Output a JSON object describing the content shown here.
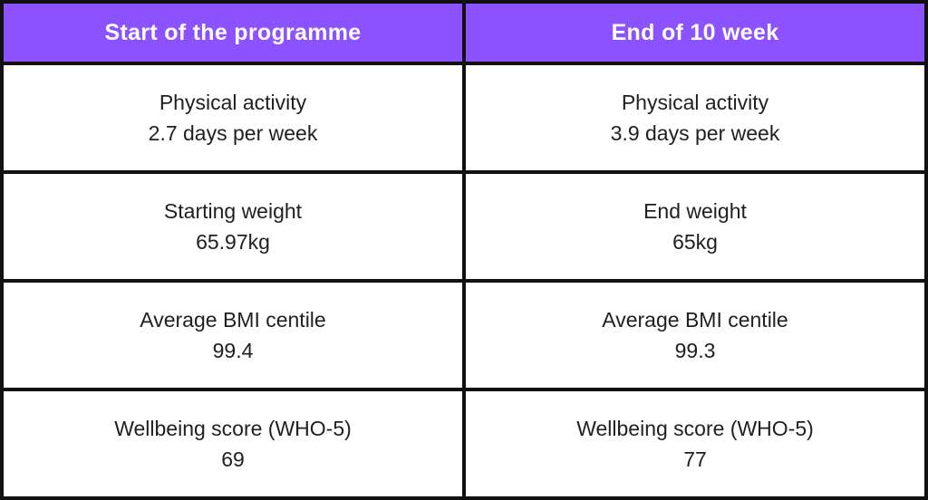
{
  "colors": {
    "header_bg": "#8C52FF",
    "header_text": "#ffffff",
    "cell_bg": "#ffffff",
    "grid_border": "#111111",
    "body_text": "#1f1f1f"
  },
  "table": {
    "headers": [
      "Start of the programme",
      "End of 10 week"
    ],
    "rows": [
      {
        "start_label": "Physical activity",
        "start_value": "2.7 days per week",
        "end_label": "Physical activity",
        "end_value": "3.9 days per week"
      },
      {
        "start_label": "Starting weight",
        "start_value": "65.97kg",
        "end_label": "End weight",
        "end_value": "65kg"
      },
      {
        "start_label": "Average BMI centile",
        "start_value": "99.4",
        "end_label": "Average BMI centile",
        "end_value": "99.3"
      },
      {
        "start_label": "Wellbeing score (WHO-5)",
        "start_value": "69",
        "end_label": "Wellbeing score (WHO-5)",
        "end_value": "77"
      }
    ]
  },
  "chart_data": {
    "type": "table",
    "columns": [
      "Start of the programme",
      "End of 10 week"
    ],
    "rows": [
      [
        "Physical activity 2.7 days per week",
        "Physical activity 3.9 days per week"
      ],
      [
        "Starting weight 65.97kg",
        "End weight 65kg"
      ],
      [
        "Average BMI centile 99.4",
        "Average BMI centile 99.3"
      ],
      [
        "Wellbeing score (WHO-5) 69",
        "Wellbeing score (WHO-5) 77"
      ]
    ],
    "metrics": [
      {
        "name": "Physical activity (days per week)",
        "start": 2.7,
        "end": 3.9
      },
      {
        "name": "Weight (kg)",
        "start": 65.97,
        "end": 65
      },
      {
        "name": "Average BMI centile",
        "start": 99.4,
        "end": 99.3
      },
      {
        "name": "Wellbeing score (WHO-5)",
        "start": 69,
        "end": 77
      }
    ],
    "title": "",
    "legend_position": "none",
    "grid": true
  }
}
